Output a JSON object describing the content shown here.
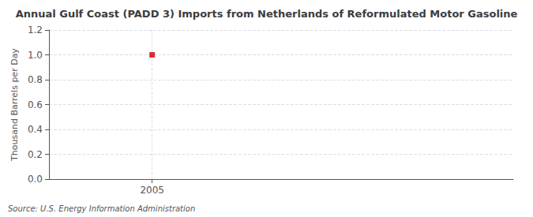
{
  "chart_data": {
    "type": "scatter",
    "title": "Annual Gulf Coast (PADD 3) Imports from Netherlands of Reformulated Motor Gasoline",
    "ylabel": "Thousand Barrels per Day",
    "source": "Source: U.S. Energy Information Administration",
    "x": [
      2005
    ],
    "values": [
      1.0
    ],
    "color": "#cc0000",
    "marker": "square",
    "xlim": [
      2004.6,
      2006.4
    ],
    "xticks": [
      2005
    ],
    "ylim": [
      0.0,
      1.2
    ],
    "yticks": [
      {
        "value": 0,
        "label": "0.0"
      },
      0.2,
      0.4,
      0.6,
      0.8,
      {
        "value": 1,
        "label": "1.0"
      },
      1.2
    ],
    "grid": true
  }
}
